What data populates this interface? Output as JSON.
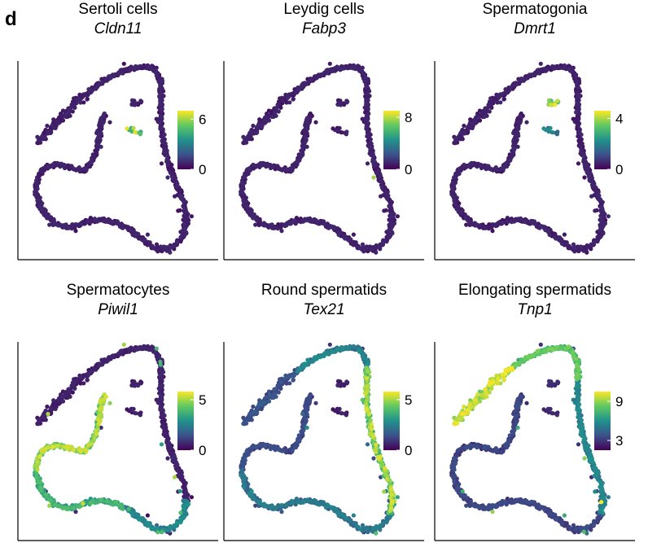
{
  "panel_label": "d",
  "chart_data": [
    {
      "type": "scatter",
      "title": "Sertoli cells",
      "gene": "Cldn11",
      "colorbar": {
        "ticks": [
          0,
          6
        ],
        "tick_labels": [
          "0",
          "6"
        ],
        "range": [
          0,
          7
        ]
      },
      "high_region": "small-cluster",
      "high_level": 0.8
    },
    {
      "type": "scatter",
      "title": "Leydig cells",
      "gene": "Fabp3",
      "colorbar": {
        "ticks": [
          0,
          8
        ],
        "tick_labels": [
          "0",
          "8"
        ],
        "range": [
          0,
          9
        ]
      },
      "high_region": "outlier",
      "high_level": 0.85
    },
    {
      "type": "scatter",
      "title": "Spermatogonia",
      "gene": "Dmrt1",
      "colorbar": {
        "ticks": [
          0,
          4
        ],
        "tick_labels": [
          "0",
          "4"
        ],
        "range": [
          0,
          4.6
        ]
      },
      "high_region": "upper-cluster",
      "high_level": 0.85
    },
    {
      "type": "scatter",
      "title": "Spermatocytes",
      "gene": "Piwil1",
      "colorbar": {
        "ticks": [
          0,
          5
        ],
        "tick_labels": [
          "0",
          "5"
        ],
        "range": [
          0,
          5.8
        ]
      },
      "high_region": "inner-arm",
      "high_level": 0.8
    },
    {
      "type": "scatter",
      "title": "Round spermatids",
      "gene": "Tex21",
      "colorbar": {
        "ticks": [
          0,
          5
        ],
        "tick_labels": [
          "0",
          "5"
        ],
        "range": [
          0,
          5.8
        ]
      },
      "high_region": "right-arm",
      "high_level": 0.8
    },
    {
      "type": "scatter",
      "title": "Elongating spermatids",
      "gene": "Tnp1",
      "colorbar": {
        "ticks": [
          3,
          9
        ],
        "tick_labels": [
          "3",
          "9"
        ],
        "range": [
          1.5,
          10.5
        ]
      },
      "high_region": "upper-left-arm",
      "high_level": 0.9
    }
  ],
  "colormap": [
    "#440154",
    "#3b528b",
    "#21918c",
    "#5ec962",
    "#fde725"
  ]
}
